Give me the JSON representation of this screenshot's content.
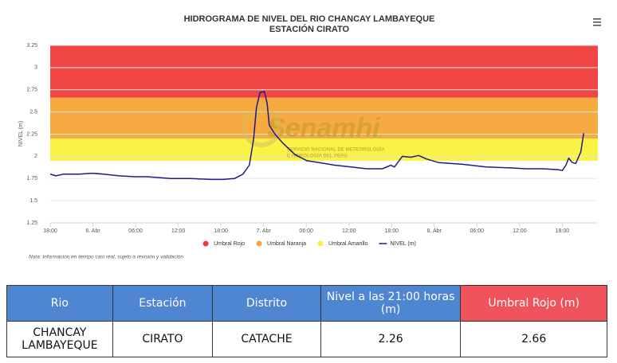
{
  "chart_data": {
    "type": "line",
    "title": "HIDROGRAMA DE NIVEL DEL RIO CHANCAY LAMBAYEQUE",
    "subtitle": "ESTACIÓN CIRATO",
    "y_label": "NIVEL (m)",
    "note": "Nota: Información en tiempo casi real, sujeto a revisión y validación",
    "watermark": {
      "title": "Senamhi",
      "subtitle": [
        "SERVICIO NACIONAL DE METEOROLOGÍA",
        "E HIDROLOGÍA DEL PERÚ"
      ]
    },
    "ylim": [
      1.25,
      3.25
    ],
    "yticks": [
      1.25,
      1.5,
      1.75,
      2,
      2.25,
      2.5,
      2.75,
      3,
      3.25
    ],
    "xlim": [
      0,
      77
    ],
    "xticks": [
      {
        "value": 0,
        "label": "18:00"
      },
      {
        "value": 6,
        "label": "6. Abr"
      },
      {
        "value": 12,
        "label": "06:00"
      },
      {
        "value": 18,
        "label": "12:00"
      },
      {
        "value": 24,
        "label": "18:00"
      },
      {
        "value": 30,
        "label": "7. Abr"
      },
      {
        "value": 36,
        "label": "06:00"
      },
      {
        "value": 42,
        "label": "12:00"
      },
      {
        "value": 48,
        "label": "18:00"
      },
      {
        "value": 54,
        "label": "8. Abr"
      },
      {
        "value": 60,
        "label": "06:00"
      },
      {
        "value": 66,
        "label": "12:00"
      },
      {
        "value": 72,
        "label": "18:00"
      }
    ],
    "thresholds": [
      {
        "name": "Umbral Rojo",
        "color": "#f03c3c",
        "value": 2.66
      },
      {
        "name": "Umbral Naranja",
        "color": "#f5a535",
        "value": 2.2
      },
      {
        "name": "Umbral Amarillo",
        "color": "#f8f23a",
        "value": 1.95
      }
    ],
    "series": [
      {
        "name": "NIVEL (m)",
        "color": "#1e1a8a",
        "x": [
          0,
          0.8,
          1.9,
          4.1,
          5.8,
          7.5,
          9.7,
          11.9,
          13.6,
          15.3,
          17.0,
          19.8,
          22.6,
          24.3,
          25.9,
          27.1,
          28.0,
          28.6,
          29.0,
          29.5,
          30.1,
          30.5,
          30.8,
          31.6,
          32.7,
          34.4,
          36.1,
          37.8,
          40.0,
          42.3,
          44.5,
          46.7,
          47.9,
          48.4,
          49.5,
          50.7,
          51.8,
          52.9,
          54.6,
          58.0,
          61.3,
          64.7,
          66.9,
          69.2,
          71.4,
          72.0,
          72.5,
          72.9,
          73.4,
          73.9,
          74.6,
          75.0
        ],
        "values": [
          1.8,
          1.78,
          1.8,
          1.8,
          1.81,
          1.8,
          1.78,
          1.77,
          1.77,
          1.76,
          1.75,
          1.75,
          1.74,
          1.74,
          1.75,
          1.8,
          1.9,
          2.2,
          2.55,
          2.72,
          2.73,
          2.6,
          2.35,
          2.25,
          2.15,
          2.02,
          1.95,
          1.93,
          1.9,
          1.88,
          1.86,
          1.86,
          1.9,
          1.88,
          2.0,
          1.99,
          2.01,
          1.97,
          1.93,
          1.91,
          1.88,
          1.87,
          1.86,
          1.86,
          1.85,
          1.84,
          1.9,
          1.98,
          1.93,
          1.92,
          2.05,
          2.26
        ]
      }
    ]
  },
  "table": {
    "headers": [
      "Rio",
      "Estación",
      "Distrito",
      "Nivel a las 21:00 horas (m)",
      "Umbral Rojo (m)"
    ],
    "rows": [
      [
        "CHANCAY LAMBAYEQUE",
        "CIRATO",
        "CATACHE",
        "2.26",
        "2.66"
      ]
    ]
  }
}
